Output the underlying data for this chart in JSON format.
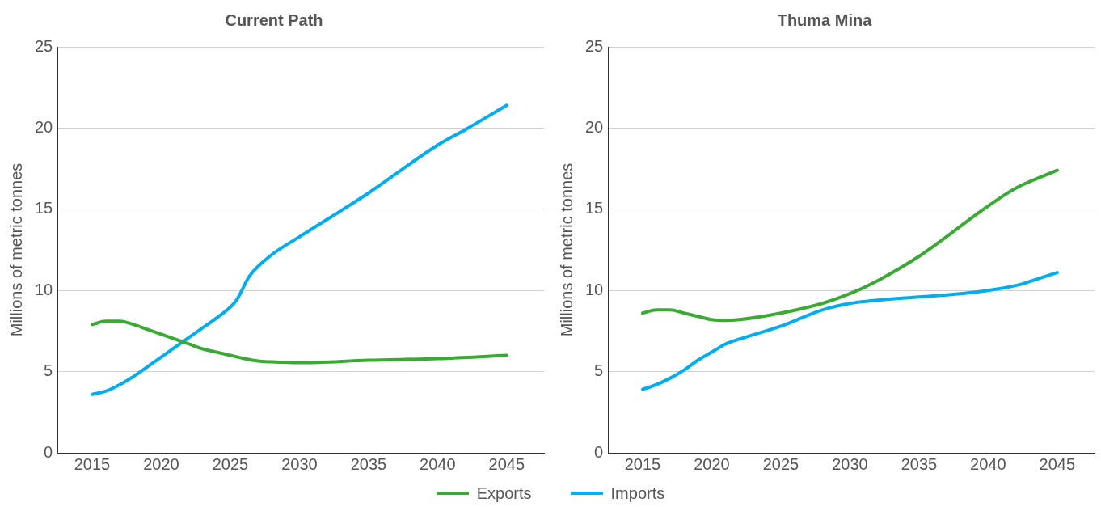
{
  "chart_data": [
    {
      "type": "line",
      "title": "Current Path",
      "ylabel": "Millions of metric tonnes",
      "xlim": [
        2012.5,
        2047.7
      ],
      "xticks": [
        2015,
        2020,
        2025,
        2030,
        2035,
        2040,
        2045
      ],
      "ylim": [
        0,
        25
      ],
      "yticks": [
        0,
        5,
        10,
        15,
        20,
        25
      ],
      "grid": "y",
      "legend": "bottom",
      "marker": "none",
      "series": [
        {
          "name": "Exports",
          "color": "#3aaa35",
          "x": [
            2015,
            2016,
            2017,
            2018,
            2019,
            2020,
            2021,
            2022,
            2023,
            2024,
            2025,
            2026,
            2027,
            2028,
            2030,
            2035,
            2040,
            2045
          ],
          "values": [
            7.9,
            8.1,
            8.1,
            7.9,
            7.6,
            7.3,
            7.0,
            6.7,
            6.4,
            6.2,
            6.0,
            5.8,
            5.65,
            5.6,
            5.55,
            5.7,
            5.8,
            6.0
          ]
        },
        {
          "name": "Imports",
          "color": "#00aeef",
          "x": [
            2015,
            2016,
            2017,
            2018,
            2019,
            2020,
            2021,
            2022,
            2023,
            2024,
            2025.4,
            2026.4,
            2028,
            2030,
            2035,
            2040,
            2042,
            2045
          ],
          "values": [
            3.6,
            3.8,
            4.2,
            4.7,
            5.3,
            5.9,
            6.5,
            7.1,
            7.7,
            8.3,
            9.35,
            10.9,
            12.2,
            13.3,
            16.0,
            18.95,
            19.9,
            21.4
          ]
        }
      ]
    },
    {
      "type": "line",
      "title": "Thuma Mina",
      "ylabel": "Millions of metric tonnes",
      "xlim": [
        2012.5,
        2047.7
      ],
      "xticks": [
        2015,
        2020,
        2025,
        2030,
        2035,
        2040,
        2045
      ],
      "ylim": [
        0,
        25
      ],
      "yticks": [
        0,
        5,
        10,
        15,
        20,
        25
      ],
      "grid": "y",
      "marker": "none",
      "series": [
        {
          "name": "Exports",
          "color": "#3aaa35",
          "x": [
            2015,
            2016,
            2017,
            2018,
            2019,
            2020,
            2021,
            2022,
            2025,
            2028,
            2030,
            2032,
            2035,
            2040,
            2042,
            2045
          ],
          "values": [
            8.6,
            8.8,
            8.8,
            8.6,
            8.4,
            8.2,
            8.15,
            8.2,
            8.6,
            9.2,
            9.8,
            10.6,
            12.1,
            15.2,
            16.3,
            17.4
          ]
        },
        {
          "name": "Imports",
          "color": "#00aeef",
          "x": [
            2015,
            2016,
            2017,
            2018,
            2019,
            2020,
            2021,
            2022,
            2025,
            2028,
            2030,
            2032,
            2035,
            2038,
            2040,
            2042,
            2045
          ],
          "values": [
            3.9,
            4.2,
            4.6,
            5.1,
            5.7,
            6.2,
            6.7,
            7.0,
            7.8,
            8.8,
            9.2,
            9.4,
            9.6,
            9.8,
            10.0,
            10.3,
            11.1
          ]
        }
      ]
    }
  ]
}
